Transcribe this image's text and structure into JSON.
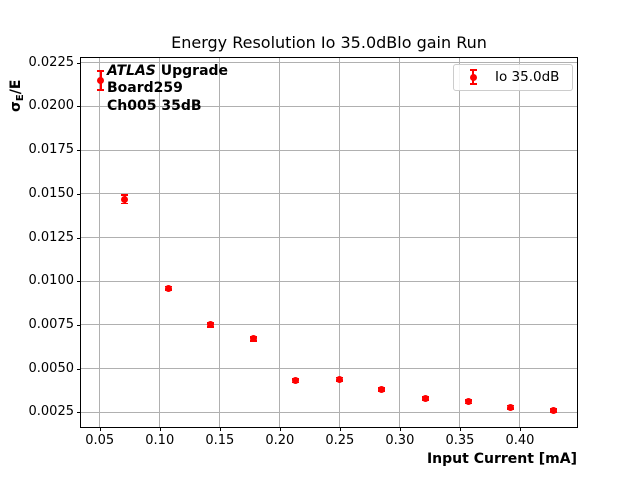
{
  "chart_data": {
    "type": "scatter",
    "title": "Energy Resolution Io 35.0dBlo gain Run",
    "xlabel": "Input Current [mA]",
    "ylabel": "σE/E",
    "ylabel_parts": {
      "sigma": "σ",
      "subscript": "E",
      "suffix": "/E"
    },
    "xlim": [
      0.0344,
      0.4475
    ],
    "ylim": [
      0.00166,
      0.0228
    ],
    "grid": true,
    "legend_position": "upper right",
    "xticks": [
      0.05,
      0.1,
      0.15,
      0.2,
      0.25,
      0.3,
      0.35,
      0.4
    ],
    "xtick_labels": [
      "0.05",
      "0.10",
      "0.15",
      "0.20",
      "0.25",
      "0.30",
      "0.35",
      "0.40"
    ],
    "yticks": [
      0.0025,
      0.005,
      0.0075,
      0.01,
      0.0125,
      0.015,
      0.0175,
      0.02,
      0.0225
    ],
    "ytick_labels": [
      "0.0025",
      "0.0050",
      "0.0075",
      "0.0100",
      "0.0125",
      "0.0150",
      "0.0175",
      "0.0200",
      "0.0225"
    ],
    "series": [
      {
        "name": "Io 35.0dB",
        "color": "#ff0000",
        "marker": "circle-errorbar",
        "x": [
          0.051,
          0.071,
          0.107,
          0.142,
          0.178,
          0.213,
          0.25,
          0.285,
          0.321,
          0.357,
          0.392,
          0.428
        ],
        "y": [
          0.0215,
          0.0147,
          0.0096,
          0.0075,
          0.0067,
          0.0043,
          0.0044,
          0.0038,
          0.0033,
          0.0031,
          0.0028,
          0.0026
        ],
        "yerr": [
          0.00055,
          0.00025,
          0.0001,
          0.0001,
          0.0001,
          9e-05,
          9e-05,
          9e-05,
          9e-05,
          9e-05,
          9e-05,
          9e-05
        ]
      }
    ]
  },
  "legend": {
    "entries": [
      {
        "label": "Io 35.0dB"
      }
    ]
  },
  "annotation": {
    "line1_italic": "ATLAS",
    "line1_bold": " Upgrade",
    "line2": "Board259",
    "line3": "Ch005 35dB"
  },
  "colors": {
    "series": "#ff0000",
    "grid": "#b0b0b0",
    "spine": "#000000",
    "text": "#000000",
    "background": "#ffffff",
    "legend_border": "#cccccc"
  }
}
